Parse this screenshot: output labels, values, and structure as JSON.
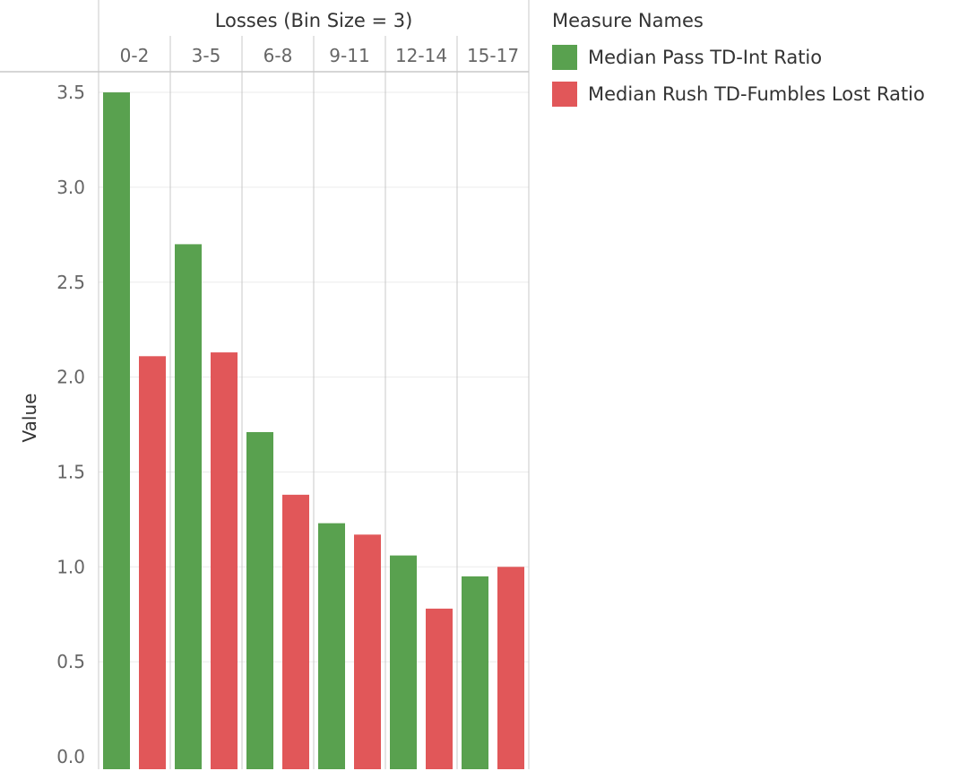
{
  "chart_data": {
    "type": "bar",
    "header_title": "Losses (Bin Size = 3)",
    "categories": [
      "0-2",
      "3-5",
      "6-8",
      "9-11",
      "12-14",
      "15-17"
    ],
    "ylabel": "Value",
    "ylim": [
      0,
      3.6
    ],
    "yticks": [
      "0.0",
      "0.5",
      "1.0",
      "1.5",
      "2.0",
      "2.5",
      "3.0",
      "3.5"
    ],
    "legend_title": "Measure Names",
    "legend_position": "right",
    "grid": true,
    "series": [
      {
        "name": "Median Pass TD-Int Ratio",
        "color": "#59a14f",
        "values": [
          3.5,
          2.7,
          1.71,
          1.23,
          1.06,
          0.95
        ]
      },
      {
        "name": "Median Rush TD-Fumbles Lost Ratio",
        "color": "#e15759",
        "values": [
          2.11,
          2.13,
          1.38,
          1.17,
          0.78,
          1.0
        ]
      }
    ]
  }
}
